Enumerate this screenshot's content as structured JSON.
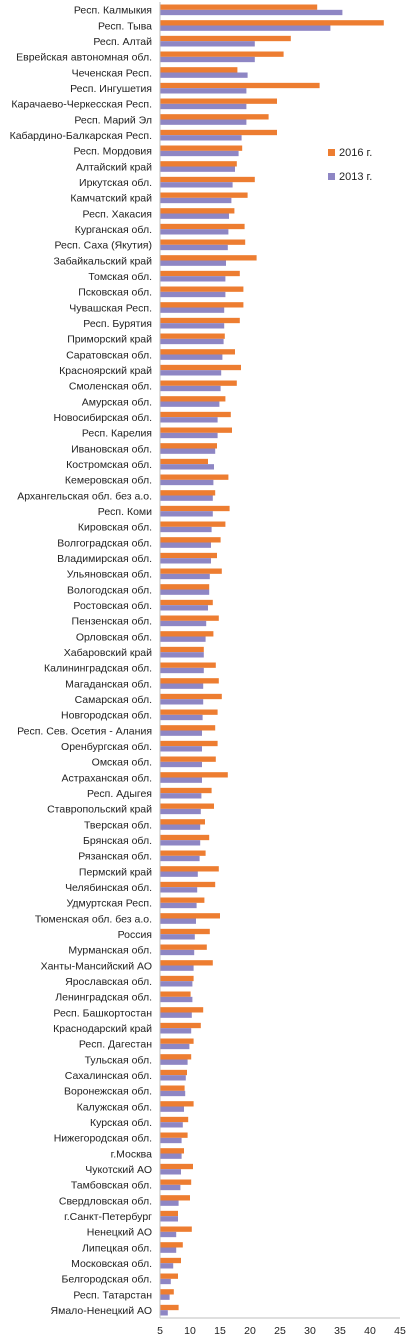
{
  "chart_data": {
    "type": "bar",
    "orientation": "horizontal",
    "grid": false,
    "legend_position": "right",
    "xlim": [
      5,
      45
    ],
    "x_ticks": [
      "5",
      "10",
      "15",
      "20",
      "25",
      "30",
      "35",
      "40",
      "45"
    ],
    "colors": {
      "2016 г.": "#ed7d31",
      "2013 г.": "#8e86c4"
    },
    "legend": [
      "2016 г.",
      "2013 г."
    ],
    "categories": [
      "Респ. Калмыкия",
      "Респ. Тыва",
      "Респ. Алтай",
      "Еврейская автономная обл.",
      "Чеченская Респ.",
      "Респ. Ингушетия",
      "Карачаево-Черкесская Респ.",
      "Респ. Марий Эл",
      "Кабардино-Балкарская Респ.",
      "Респ. Мордовия",
      "Алтайский край",
      "Иркутская обл.",
      "Камчатский край",
      "Респ. Хакасия",
      "Курганская обл.",
      "Респ. Саха (Якутия)",
      "Забайкальский край",
      "Томская обл.",
      "Псковская обл.",
      "Чувашская Респ.",
      "Респ. Бурятия",
      "Приморский край",
      "Саратовская обл.",
      "Красноярский край",
      "Смоленская обл.",
      "Амурская обл.",
      "Новосибирская обл.",
      "Респ. Карелия",
      "Ивановская обл.",
      "Костромская обл.",
      "Кемеровская обл.",
      "Архангельская обл. без а.о.",
      "Респ. Коми",
      "Кировская обл.",
      "Волгоградская обл.",
      "Владимирская обл.",
      "Ульяновская обл.",
      "Вологодская обл.",
      "Ростовская обл.",
      "Пензенская обл.",
      "Орловская обл.",
      "Хабаровский край",
      "Калининградская обл.",
      "Магаданская обл.",
      "Самарская обл.",
      "Новгородская обл.",
      "Респ. Сев. Осетия - Алания",
      "Оренбургская обл.",
      "Омская обл.",
      "Астраханская обл.",
      "Респ. Адыгея",
      "Ставропольский край",
      "Тверская обл.",
      "Брянская обл.",
      "Рязанская обл.",
      "Пермский край",
      "Челябинская обл.",
      "Удмуртская Респ.",
      "Тюменская обл. без а.о.",
      "Россия",
      "Мурманская обл.",
      "Ханты-Мансийский АО",
      "Ярославская обл.",
      "Ленинградская обл.",
      "Респ. Башкортостан",
      "Краснодарский край",
      "Респ. Дагестан",
      "Тульская обл.",
      "Сахалинская обл.",
      "Воронежская обл.",
      "Калужская обл.",
      "Курская обл.",
      "Нижегородская обл.",
      "г.Москва",
      "Чукотский АО",
      "Тамбовская обл.",
      "Свердловская обл.",
      "г.Санкт-Петербург",
      "Ненецкий АО",
      "Липецкая обл.",
      "Московская обл.",
      "Белгородская обл.",
      "Респ. Татарстан",
      "Ямало-Ненецкий АО"
    ],
    "series": [
      {
        "name": "2016 г.",
        "values": [
          31.2,
          42.3,
          26.8,
          25.6,
          17.9,
          31.6,
          24.5,
          23.1,
          24.5,
          18.7,
          17.8,
          20.8,
          19.6,
          17.4,
          19.1,
          19.2,
          21.1,
          18.3,
          18.9,
          18.9,
          18.3,
          15.8,
          17.5,
          18.5,
          17.8,
          15.9,
          16.8,
          17.0,
          14.5,
          13.0,
          16.4,
          14.2,
          16.6,
          15.9,
          15.1,
          14.5,
          15.3,
          13.2,
          13.8,
          14.8,
          13.9,
          12.3,
          14.3,
          14.8,
          15.3,
          14.6,
          14.2,
          14.6,
          14.3,
          16.3,
          13.6,
          14.0,
          12.5,
          13.2,
          12.6,
          14.8,
          14.2,
          12.4,
          15.0,
          13.3,
          12.8,
          13.8,
          10.6,
          10.1,
          12.2,
          11.8,
          10.6,
          10.2,
          9.5,
          9.1,
          10.6,
          9.7,
          9.6,
          9.0,
          10.5,
          10.2,
          10.0,
          8.0,
          10.3,
          8.8,
          8.5,
          8.0,
          7.3,
          8.1
        ]
      },
      {
        "name": "2013 г.",
        "values": [
          35.4,
          33.4,
          20.8,
          20.8,
          19.6,
          19.4,
          19.4,
          19.4,
          18.6,
          18.1,
          17.5,
          17.1,
          16.9,
          16.5,
          16.4,
          16.3,
          16.0,
          15.9,
          15.9,
          15.7,
          15.7,
          15.6,
          15.4,
          15.2,
          15.1,
          14.9,
          14.6,
          14.6,
          14.2,
          14.0,
          13.9,
          13.8,
          13.8,
          13.6,
          13.5,
          13.5,
          13.3,
          13.2,
          13.0,
          12.7,
          12.6,
          12.3,
          12.3,
          12.2,
          12.2,
          12.1,
          12.0,
          12.0,
          12.0,
          12.0,
          11.9,
          11.8,
          11.7,
          11.7,
          11.6,
          11.3,
          11.2,
          11.1,
          11.0,
          10.8,
          10.7,
          10.6,
          10.4,
          10.4,
          10.3,
          10.2,
          9.9,
          9.6,
          9.3,
          9.2,
          9.0,
          8.8,
          8.6,
          8.6,
          8.5,
          8.4,
          8.1,
          8.0,
          7.7,
          7.7,
          7.2,
          6.8,
          6.6,
          6.3
        ]
      }
    ]
  }
}
